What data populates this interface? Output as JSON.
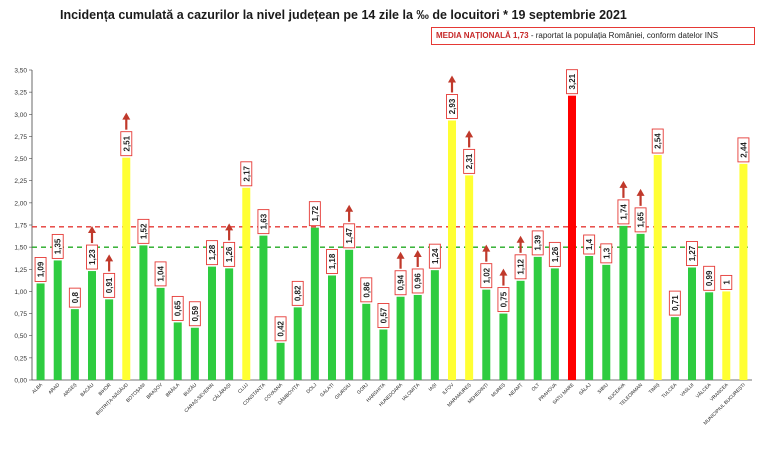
{
  "title": "Incidența cumulată a cazurilor la nivel județean pe 14 zile la ‰ de locuitori * 19 septembrie 2021",
  "national": {
    "label": "MEDIA NAȚIONALĂ",
    "value": "1,73",
    "note": "- raportat la populația României, conform datelor INS"
  },
  "colors": {
    "green": "#2ecc40",
    "yellow": "#ffff33",
    "red": "#ff0000",
    "axis": "#444444",
    "ref_red": "#e53935",
    "ref_green": "#22aa22"
  },
  "chart_data": {
    "type": "bar",
    "title": "Incidența cumulată a cazurilor la nivel județean pe 14 zile la ‰ de locuitori * 19 septembrie 2021",
    "ylim": [
      0,
      3.5
    ],
    "yticks": [
      "0,00",
      "0,25",
      "0,50",
      "0,75",
      "1,00",
      "1,25",
      "1,50",
      "1,75",
      "2,00",
      "2,25",
      "2,50",
      "2,75",
      "3,00",
      "3,25",
      "3,50"
    ],
    "reference_lines": [
      {
        "value": 1.73,
        "color": "red",
        "style": "dashed"
      },
      {
        "value": 1.5,
        "color": "green",
        "style": "dashed"
      }
    ],
    "grid": false,
    "categories": [
      "ALBA",
      "ARAD",
      "ARGEȘ",
      "BACĂU",
      "BIHOR",
      "BISTRIȚA-NĂSĂUD",
      "BOTOȘANI",
      "BRAȘOV",
      "BRĂILA",
      "BUZĂU",
      "CARAȘ-SEVERIN",
      "CĂLĂRAȘI",
      "CLUJ",
      "CONSTANȚA",
      "COVASNA",
      "DÂMBOVIȚA",
      "DOLJ",
      "GALAȚI",
      "GIURGIU",
      "GORJ",
      "HARGHITA",
      "HUNEDOARA",
      "IALOMIȚA",
      "IAȘI",
      "ILFOV",
      "MARAMUREȘ",
      "MEHEDINȚI",
      "MUREȘ",
      "NEAMȚ",
      "OLT",
      "PRAHOVA",
      "SATU MARE",
      "SĂLAJ",
      "SIBIU",
      "SUCEAVA",
      "TELEORMAN",
      "TIMIȘ",
      "TULCEA",
      "VASLUI",
      "VÂLCEA",
      "VRANCEA",
      "MUNICIPIUL BUCUREȘTI"
    ],
    "values": [
      1.09,
      1.35,
      0.8,
      1.23,
      0.91,
      2.51,
      1.52,
      1.04,
      0.65,
      0.59,
      1.28,
      1.26,
      2.17,
      1.63,
      0.42,
      0.82,
      1.72,
      1.18,
      1.47,
      0.86,
      0.57,
      0.94,
      0.96,
      1.24,
      2.93,
      2.31,
      1.02,
      0.75,
      1.12,
      1.39,
      1.26,
      3.21,
      1.4,
      1.3,
      1.74,
      1.65,
      2.54,
      0.71,
      1.27,
      0.99,
      1,
      2.44
    ],
    "labels": [
      "1,09",
      "1,35",
      "0,8",
      "1,23",
      "0,91",
      "2,51",
      "1,52",
      "1,04",
      "0,65",
      "0,59",
      "1,28",
      "1,26",
      "2,17",
      "1,63",
      "0,42",
      "0,82",
      "1,72",
      "1,18",
      "1,47",
      "0,86",
      "0,57",
      "0,94",
      "0,96",
      "1,24",
      "2,93",
      "2,31",
      "1,02",
      "0,75",
      "1,12",
      "1,39",
      "1,26",
      "3,21",
      "1,4",
      "1,3",
      "1,74",
      "1,65",
      "2,54",
      "0,71",
      "1,27",
      "0,99",
      "1",
      "2,44"
    ],
    "bar_colors": [
      "green",
      "green",
      "green",
      "green",
      "green",
      "yellow",
      "green",
      "green",
      "green",
      "green",
      "green",
      "green",
      "yellow",
      "green",
      "green",
      "green",
      "green",
      "green",
      "green",
      "green",
      "green",
      "green",
      "green",
      "green",
      "yellow",
      "yellow",
      "green",
      "green",
      "green",
      "green",
      "green",
      "red",
      "green",
      "green",
      "green",
      "green",
      "yellow",
      "green",
      "green",
      "green",
      "yellow",
      "yellow"
    ],
    "up_arrows": [
      3,
      4,
      5,
      11,
      18,
      21,
      22,
      24,
      25,
      26,
      27,
      28,
      34,
      35
    ]
  }
}
